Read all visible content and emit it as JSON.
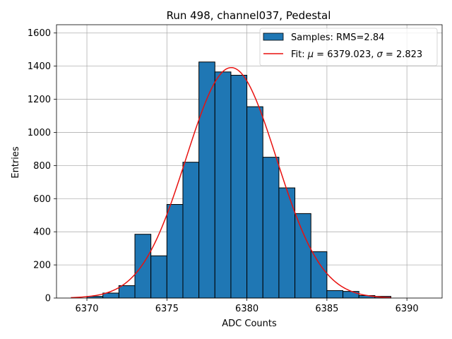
{
  "chart_data": {
    "type": "bar",
    "title": "Run 498, channel037, Pedestal",
    "xlabel": "ADC Counts",
    "ylabel": "Entries",
    "xlim": [
      6368.1,
      6392.2
    ],
    "ylim": [
      0,
      1650
    ],
    "xticks": [
      6370,
      6375,
      6380,
      6385,
      6390
    ],
    "yticks": [
      0,
      200,
      400,
      600,
      800,
      1000,
      1200,
      1400,
      1600
    ],
    "grid": true,
    "legend_position": "top-right",
    "histogram": {
      "name": "Samples: RMS=2.84",
      "color": "#1f77b4",
      "bin_edges": [
        6370,
        6371,
        6372,
        6373,
        6374,
        6375,
        6376,
        6377,
        6378,
        6379,
        6380,
        6381,
        6382,
        6383,
        6384,
        6385,
        6386,
        6387,
        6388,
        6389
      ],
      "counts": [
        10,
        30,
        75,
        385,
        255,
        565,
        820,
        1425,
        1365,
        1345,
        1155,
        850,
        665,
        510,
        280,
        45,
        40,
        15,
        10
      ]
    },
    "fit": {
      "name_prefix": "Fit: ",
      "mu_symbol": "μ",
      "sigma_symbol": "σ",
      "mu": "6379.023",
      "sigma": "2.823",
      "x_range": [
        6369,
        6389
      ],
      "color": "#e8110f"
    }
  }
}
